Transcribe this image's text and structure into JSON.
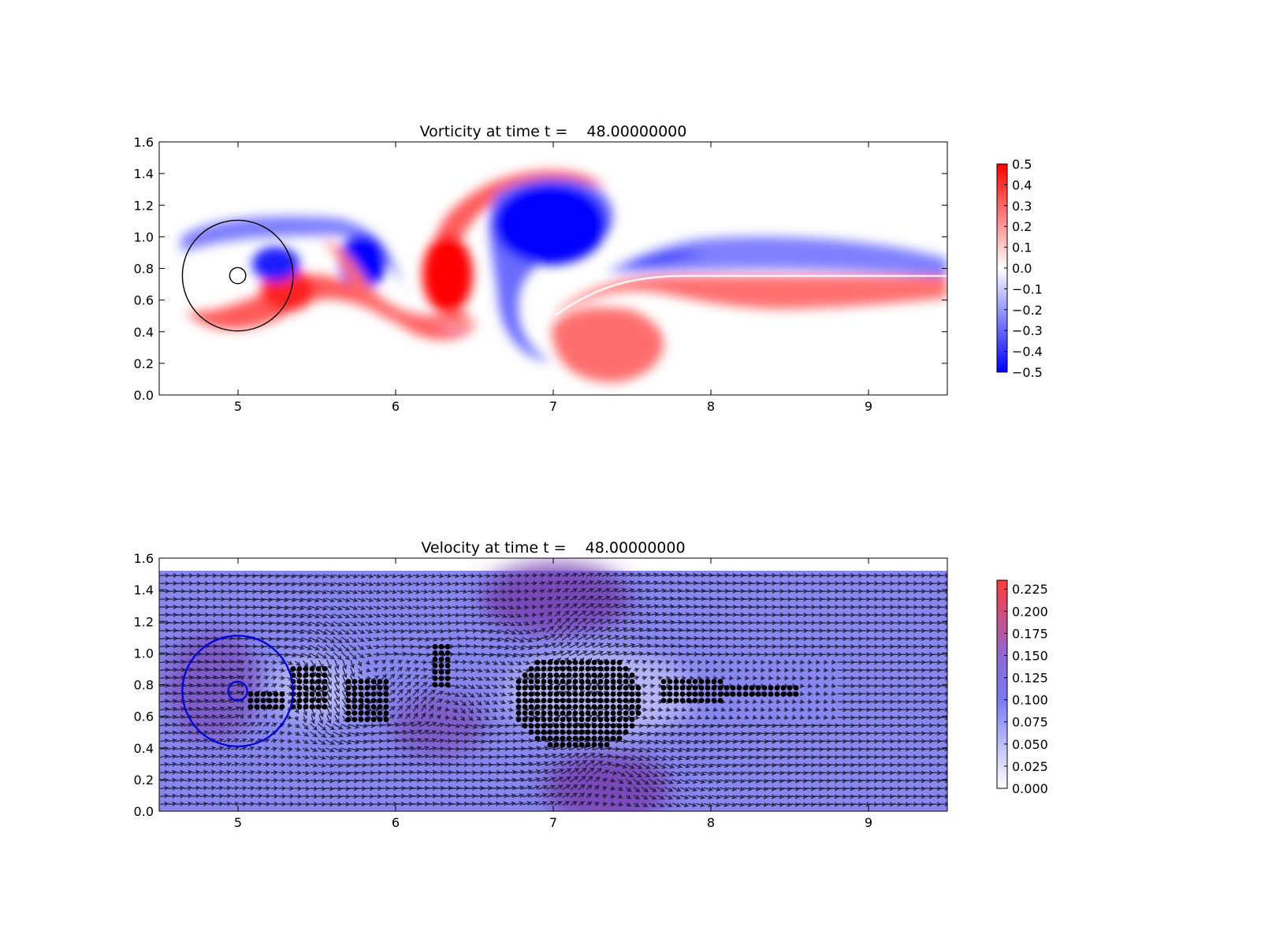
{
  "chart_data": [
    {
      "type": "heatmap",
      "title": "Vorticity at time t =    48.00000000",
      "xlim": [
        4.5,
        9.5
      ],
      "ylim": [
        0.0,
        1.6
      ],
      "xticks": [
        "5",
        "6",
        "7",
        "8",
        "9"
      ],
      "yticks": [
        "0.0",
        "0.2",
        "0.4",
        "0.6",
        "0.8",
        "1.0",
        "1.2",
        "1.4",
        "1.6"
      ],
      "colorbar": {
        "min": -0.5,
        "max": 0.5,
        "colormap": "bwr",
        "colors": [
          "#0000ff",
          "#ffffff",
          "#ff0000"
        ],
        "ticks": [
          "−0.5",
          "−0.4",
          "−0.3",
          "−0.2",
          "−0.1",
          "0.0",
          "0.1",
          "0.2",
          "0.3",
          "0.4",
          "0.5"
        ]
      },
      "circles": [
        {
          "cx": 5.0,
          "cy": 0.75,
          "r": 0.35,
          "color": "#000000"
        },
        {
          "cx": 5.0,
          "cy": 0.75,
          "r": 0.05,
          "color": "#000000"
        }
      ],
      "vortices": [
        {
          "x": 6.9,
          "y": 1.05,
          "sign": "negative",
          "vorticity": -0.5
        },
        {
          "x": 7.35,
          "y": 0.32,
          "sign": "positive",
          "vorticity": 0.5
        },
        {
          "x": 6.3,
          "y": 0.68,
          "sign": "positive",
          "vorticity": 0.5
        },
        {
          "x": 5.8,
          "y": 0.85,
          "sign": "negative",
          "vorticity": -0.5
        },
        {
          "x": 5.3,
          "y": 0.7,
          "sign": "positive",
          "vorticity": 0.5
        }
      ]
    },
    {
      "type": "heatmap",
      "title": "Velocity at time t =    48.00000000",
      "xlim": [
        4.5,
        9.5
      ],
      "ylim": [
        0.0,
        1.6
      ],
      "xticks": [
        "5",
        "6",
        "7",
        "8",
        "9"
      ],
      "yticks": [
        "0.0",
        "0.2",
        "0.4",
        "0.6",
        "0.8",
        "1.0",
        "1.2",
        "1.4",
        "1.6"
      ],
      "colorbar": {
        "min": 0.0,
        "max": 0.235,
        "colors": [
          "#ffffff",
          "#7b7bf2",
          "#ff3b3b"
        ],
        "ticks": [
          "0.000",
          "0.025",
          "0.050",
          "0.075",
          "0.100",
          "0.125",
          "0.150",
          "0.175",
          "0.200",
          "0.225"
        ]
      },
      "field_top": 1.52,
      "circles": [
        {
          "cx": 5.0,
          "cy": 0.75,
          "r": 0.35,
          "color": "#0000dd"
        },
        {
          "cx": 5.0,
          "cy": 0.75,
          "r": 0.06,
          "color": "#0000dd"
        }
      ]
    }
  ]
}
